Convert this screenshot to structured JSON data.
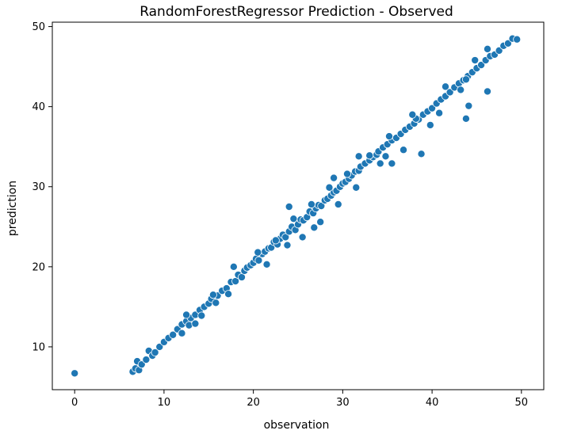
{
  "chart_data": {
    "type": "scatter",
    "title": "RandomForestRegressor Prediction - Observed",
    "xlabel": "observation",
    "ylabel": "prediction",
    "xlim": [
      -2.5,
      52.5
    ],
    "ylim": [
      4.65,
      50.55
    ],
    "xticks": [
      0,
      10,
      20,
      30,
      40,
      50
    ],
    "yticks": [
      10,
      20,
      30,
      40,
      50
    ],
    "xtick_labels": [
      "0",
      "10",
      "20",
      "30",
      "40",
      "50"
    ],
    "ytick_labels": [
      "10",
      "20",
      "30",
      "40",
      "50"
    ],
    "grid": false,
    "marker_color": "#1f77b4",
    "marker_edge_color": "#ffffff",
    "series": [
      {
        "x": [
          0.0,
          6.5,
          6.8,
          7.0,
          7.2,
          7.5,
          8.0,
          8.3,
          8.7,
          9.0,
          9.5,
          10.0,
          10.5,
          11.0,
          11.5,
          12.0,
          12.0,
          12.5,
          12.8,
          13.0,
          13.5,
          14.0,
          14.2,
          14.5,
          15.0,
          15.3,
          15.8,
          16.0,
          16.5,
          17.0,
          17.2,
          17.5,
          18.0,
          18.3,
          18.7,
          19.0,
          19.3,
          19.7,
          20.0,
          20.3,
          20.6,
          21.0,
          21.3,
          21.7,
          22.0,
          22.3,
          22.7,
          23.0,
          23.3,
          23.6,
          24.0,
          24.3,
          24.7,
          25.0,
          25.3,
          25.6,
          26.0,
          26.3,
          26.7,
          27.0,
          27.3,
          27.6,
          28.0,
          28.3,
          28.7,
          29.0,
          29.3,
          29.7,
          30.0,
          30.3,
          30.7,
          31.0,
          31.4,
          31.8,
          32.0,
          32.5,
          33.0,
          33.4,
          33.8,
          34.0,
          34.5,
          35.0,
          35.5,
          36.0,
          36.5,
          37.0,
          37.5,
          38.0,
          38.5,
          39.0,
          39.5,
          40.0,
          40.5,
          41.0,
          41.5,
          42.0,
          42.5,
          43.0,
          43.5,
          44.0,
          44.5,
          45.0,
          45.5,
          46.0,
          46.5,
          47.0,
          47.5,
          48.0,
          48.5,
          49.0,
          49.5,
          12.5,
          13.5,
          15.5,
          17.8,
          20.5,
          21.5,
          22.5,
          23.8,
          24.5,
          25.5,
          26.5,
          27.5,
          28.5,
          29.5,
          30.5,
          31.5,
          33.0,
          34.2,
          35.2,
          36.8,
          38.2,
          39.8,
          41.5,
          43.2,
          44.8,
          24.0,
          26.8,
          29.0,
          31.8,
          34.8,
          37.8,
          40.8,
          43.8,
          46.2,
          38.8,
          43.8,
          44.1,
          46.2,
          35.5
        ],
        "y": [
          6.7,
          6.9,
          7.3,
          8.2,
          7.1,
          7.8,
          8.4,
          9.5,
          8.9,
          9.3,
          10.0,
          10.6,
          11.1,
          11.5,
          12.2,
          12.8,
          11.7,
          13.2,
          12.7,
          13.6,
          14.0,
          14.6,
          13.9,
          15.0,
          15.4,
          16.0,
          15.5,
          16.4,
          17.0,
          17.3,
          16.6,
          18.1,
          18.2,
          19.0,
          18.7,
          19.5,
          19.9,
          20.2,
          20.5,
          21.0,
          20.8,
          21.6,
          21.9,
          22.3,
          22.4,
          23.1,
          22.8,
          23.5,
          24.0,
          23.7,
          24.4,
          25.0,
          24.6,
          25.3,
          25.9,
          25.8,
          26.2,
          26.9,
          26.7,
          27.3,
          27.7,
          27.6,
          28.3,
          28.5,
          28.9,
          29.3,
          29.5,
          30.0,
          30.4,
          30.6,
          31.0,
          31.4,
          31.9,
          32.0,
          32.5,
          32.9,
          33.3,
          33.7,
          34.0,
          34.4,
          34.9,
          35.3,
          35.8,
          36.1,
          36.6,
          37.1,
          37.5,
          37.9,
          38.4,
          39.0,
          39.4,
          39.8,
          40.4,
          40.9,
          41.3,
          41.8,
          42.4,
          42.9,
          43.3,
          43.8,
          44.3,
          44.8,
          45.2,
          45.8,
          46.3,
          46.5,
          47.0,
          47.6,
          47.9,
          48.5,
          48.4,
          14.0,
          12.9,
          16.5,
          20.0,
          21.8,
          20.3,
          23.3,
          22.7,
          26.0,
          23.7,
          27.8,
          25.6,
          29.9,
          27.8,
          31.6,
          29.9,
          33.9,
          32.9,
          36.3,
          34.6,
          38.5,
          37.7,
          42.5,
          42.1,
          45.8,
          27.5,
          24.9,
          31.1,
          33.8,
          33.8,
          39.0,
          39.2,
          43.4,
          47.2,
          34.1,
          38.5,
          40.1,
          41.9,
          32.9
        ]
      }
    ]
  }
}
